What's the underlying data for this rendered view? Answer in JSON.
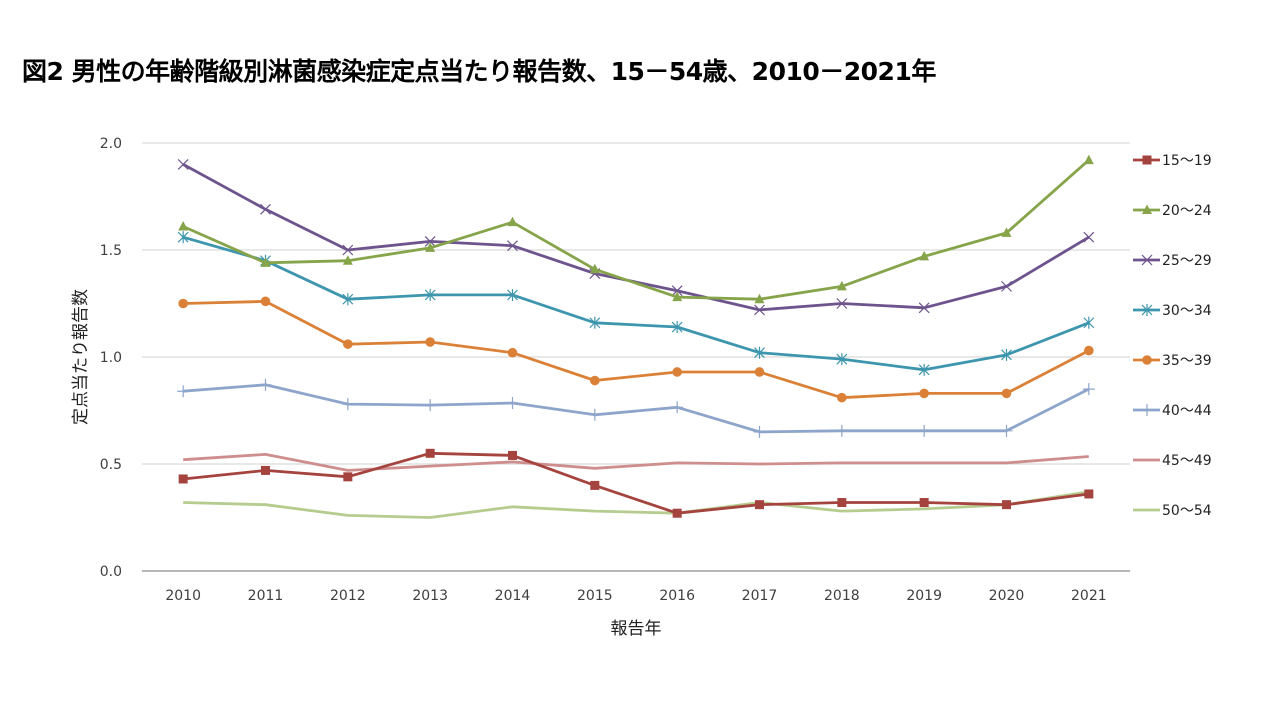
{
  "chart_data": {
    "type": "line",
    "title": "図2 男性の年齢階級別淋菌感染症定点当たり報告数、15－54歳、2010－2021年",
    "xlabel": "報告年",
    "ylabel": "定点当たり報告数",
    "ylim": [
      0,
      2.0
    ],
    "yticks": [
      "0.0",
      "0.5",
      "1.0",
      "1.5",
      "2.0"
    ],
    "ytick_values": [
      0,
      0.5,
      1.0,
      1.5,
      2.0
    ],
    "grid": true,
    "legend_position": "right",
    "categories": [
      "2010",
      "2011",
      "2012",
      "2013",
      "2014",
      "2015",
      "2016",
      "2017",
      "2018",
      "2019",
      "2020",
      "2021"
    ],
    "series": [
      {
        "name": "15～19",
        "color": "#A5433F",
        "marker": "square",
        "values": [
          0.43,
          0.47,
          0.44,
          0.55,
          0.54,
          0.4,
          0.27,
          0.31,
          0.32,
          0.32,
          0.31,
          0.36
        ]
      },
      {
        "name": "20～24",
        "color": "#86A44A",
        "marker": "triangle",
        "values": [
          1.61,
          1.44,
          1.45,
          1.51,
          1.63,
          1.41,
          1.28,
          1.27,
          1.33,
          1.47,
          1.58,
          1.92
        ]
      },
      {
        "name": "25～29",
        "color": "#6E548D",
        "marker": "x",
        "values": [
          1.9,
          1.69,
          1.5,
          1.54,
          1.52,
          1.39,
          1.31,
          1.22,
          1.25,
          1.23,
          1.33,
          1.56
        ]
      },
      {
        "name": "30～34",
        "color": "#3D96AE",
        "marker": "star",
        "values": [
          1.56,
          1.45,
          1.27,
          1.29,
          1.29,
          1.16,
          1.14,
          1.02,
          0.99,
          0.94,
          1.01,
          1.16
        ]
      },
      {
        "name": "35～39",
        "color": "#DA8137",
        "marker": "circle",
        "values": [
          1.25,
          1.26,
          1.06,
          1.07,
          1.02,
          0.89,
          0.93,
          0.93,
          0.81,
          0.83,
          0.83,
          1.03
        ]
      },
      {
        "name": "40～44",
        "color": "#8EA5CB",
        "marker": "plus",
        "values": [
          0.84,
          0.87,
          0.78,
          0.775,
          0.785,
          0.73,
          0.765,
          0.65,
          0.655,
          0.655,
          0.655,
          0.85
        ]
      },
      {
        "name": "45～49",
        "color": "#CE8E8D",
        "marker": "none",
        "values": [
          0.52,
          0.545,
          0.47,
          0.49,
          0.51,
          0.48,
          0.505,
          0.5,
          0.505,
          0.505,
          0.505,
          0.535
        ]
      },
      {
        "name": "50～54",
        "color": "#B5CC8E",
        "marker": "none",
        "values": [
          0.32,
          0.31,
          0.26,
          0.25,
          0.3,
          0.28,
          0.27,
          0.32,
          0.28,
          0.29,
          0.31,
          0.37
        ]
      }
    ]
  }
}
